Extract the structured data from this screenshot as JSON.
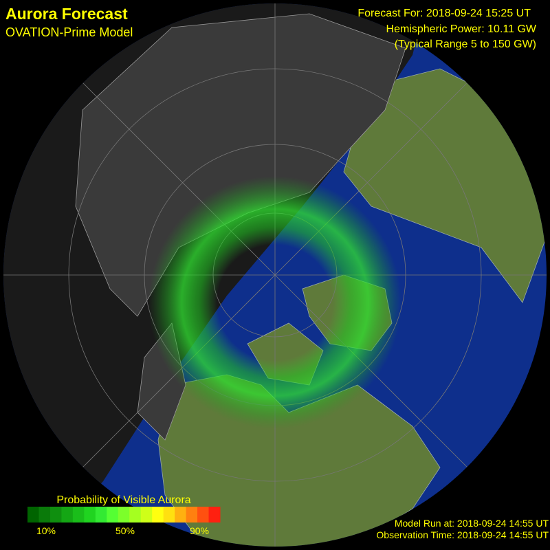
{
  "header": {
    "title": "Aurora Forecast",
    "subtitle": "OVATION-Prime Model"
  },
  "info": {
    "forecast_for": "Forecast For: 2018-09-24 15:25 UT",
    "hemispheric_power": "Hemispheric Power: 10.11 GW",
    "typical_range": "(Typical Range 5 to 150 GW)"
  },
  "legend": {
    "title": "Probability of Visible Aurora",
    "labels": [
      "10%",
      "50%",
      "90%"
    ]
  },
  "footer": {
    "model_run": "Model Run at: 2018-09-24 14:55 UT",
    "observation_time": "Observation Time: 2018-09-24 14:55 UT"
  }
}
